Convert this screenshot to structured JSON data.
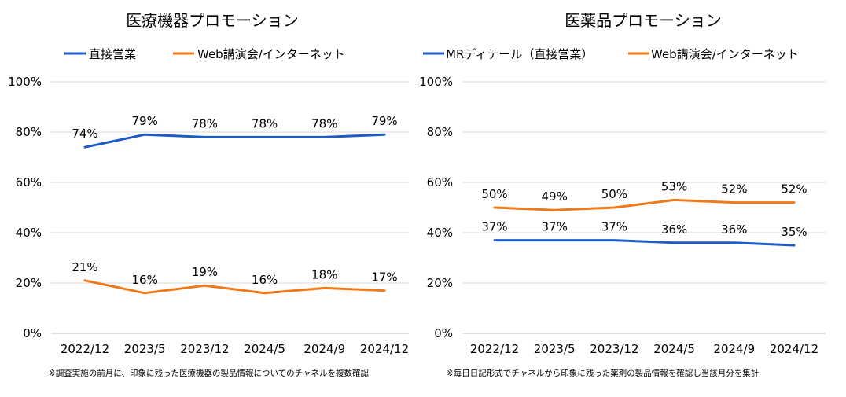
{
  "colors": {
    "blue": "#1f5bc6",
    "orange": "#f07a1a",
    "grid": "#d9d9d9"
  },
  "chart_data": [
    {
      "type": "line",
      "title": "医療機器プロモーション",
      "categories": [
        "2022/12",
        "2023/5",
        "2023/12",
        "2024/5",
        "2024/9",
        "2024/12"
      ],
      "ylim": [
        0,
        100
      ],
      "yticks": [
        "0%",
        "20%",
        "40%",
        "60%",
        "80%",
        "100%"
      ],
      "series": [
        {
          "name": "直接営業",
          "color": "#1f5bc6",
          "values": [
            74,
            79,
            78,
            78,
            78,
            79
          ],
          "labels": [
            "74%",
            "79%",
            "78%",
            "78%",
            "78%",
            "79%"
          ]
        },
        {
          "name": "Web講演会/インターネット",
          "color": "#f07a1a",
          "values": [
            21,
            16,
            19,
            16,
            18,
            17
          ],
          "labels": [
            "21%",
            "16%",
            "19%",
            "16%",
            "18%",
            "17%"
          ]
        }
      ],
      "note": "※調査実施の前月に、印象に残った医療機器の製品情報についてのチャネルを複数確認"
    },
    {
      "type": "line",
      "title": "医薬品プロモーション",
      "categories": [
        "2022/12",
        "2023/5",
        "2023/12",
        "2024/5",
        "2024/9",
        "2024/12"
      ],
      "ylim": [
        0,
        100
      ],
      "yticks": [
        "0%",
        "20%",
        "40%",
        "60%",
        "80%",
        "100%"
      ],
      "series": [
        {
          "name": "MRディテール（直接営業）",
          "color": "#1f5bc6",
          "values": [
            37,
            37,
            37,
            36,
            36,
            35
          ],
          "labels": [
            "37%",
            "37%",
            "37%",
            "36%",
            "36%",
            "35%"
          ]
        },
        {
          "name": "Web講演会/インターネット",
          "color": "#f07a1a",
          "values": [
            50,
            49,
            50,
            53,
            52,
            52
          ],
          "labels": [
            "50%",
            "49%",
            "50%",
            "53%",
            "52%",
            "52%"
          ]
        }
      ],
      "note": "※毎日日記形式でチャネルから印象に残った薬剤の製品情報を確認し当該月分を集計"
    }
  ]
}
